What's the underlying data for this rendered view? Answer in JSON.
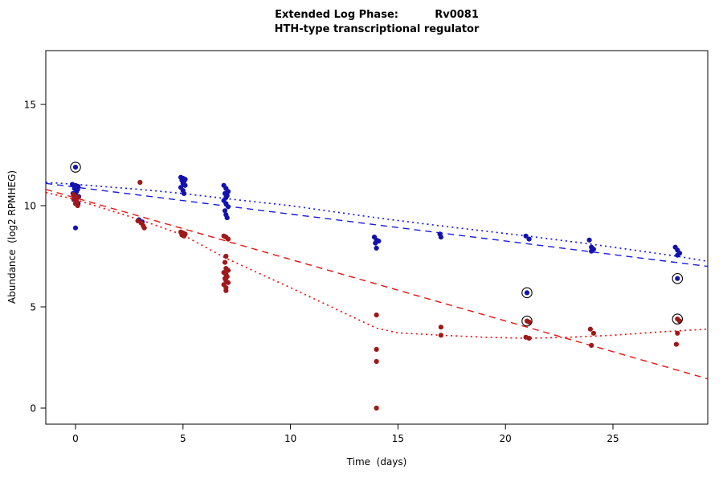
{
  "chart_data": {
    "type": "scatter",
    "title": "Extended Log Phase:          Rv0081",
    "subtitle": "HTH-type transcriptional regulator",
    "xlabel": "Time  (days)",
    "ylabel": "Abundance  (log2 RPMHEG)",
    "x_ticks": [
      0,
      5,
      10,
      15,
      20,
      25
    ],
    "y_ticks": [
      0,
      5,
      10,
      15
    ],
    "xlim": [
      -1.4,
      29.4
    ],
    "ylim": [
      -0.8,
      17.6
    ],
    "grid": false,
    "legend": "none",
    "colors": {
      "blue_points": "#1212b0",
      "red_points": "#a01818",
      "blue_line": "#1a1ae6",
      "red_line": "#ee1111",
      "outlier_ring": "#000000"
    },
    "series": [
      {
        "name": "blue",
        "color": "#1212b0",
        "points": [
          [
            0,
            11.9
          ],
          [
            -0.15,
            11.05
          ],
          [
            0.0,
            11.0
          ],
          [
            0.12,
            10.95
          ],
          [
            -0.05,
            10.85
          ],
          [
            0.1,
            10.8
          ],
          [
            0.05,
            10.7
          ],
          [
            -0.12,
            10.6
          ],
          [
            0.02,
            10.5
          ],
          [
            0.15,
            10.45
          ],
          [
            -0.08,
            10.3
          ],
          [
            0.05,
            10.2
          ],
          [
            0.12,
            10.1
          ],
          [
            0.0,
            8.9
          ],
          [
            2.95,
            9.3
          ],
          [
            3.1,
            9.2
          ],
          [
            4.9,
            11.4
          ],
          [
            5.0,
            11.35
          ],
          [
            5.1,
            11.3
          ],
          [
            4.95,
            11.25
          ],
          [
            5.05,
            11.2
          ],
          [
            5.0,
            11.1
          ],
          [
            5.1,
            11.0
          ],
          [
            4.9,
            10.9
          ],
          [
            5.0,
            10.75
          ],
          [
            5.05,
            10.6
          ],
          [
            6.9,
            11.0
          ],
          [
            7.0,
            10.85
          ],
          [
            7.1,
            10.7
          ],
          [
            6.95,
            10.6
          ],
          [
            7.05,
            10.5
          ],
          [
            7.0,
            10.4
          ],
          [
            6.9,
            10.25
          ],
          [
            7.0,
            10.1
          ],
          [
            7.1,
            9.95
          ],
          [
            6.95,
            9.75
          ],
          [
            7.0,
            9.55
          ],
          [
            7.05,
            9.4
          ],
          [
            13.9,
            8.45
          ],
          [
            14.0,
            8.3
          ],
          [
            14.1,
            8.25
          ],
          [
            13.95,
            8.15
          ],
          [
            14.0,
            7.9
          ],
          [
            16.95,
            8.6
          ],
          [
            17.0,
            8.45
          ],
          [
            20.95,
            8.5
          ],
          [
            21.1,
            8.35
          ],
          [
            21.0,
            5.7
          ],
          [
            23.9,
            8.3
          ],
          [
            24.0,
            7.95
          ],
          [
            24.1,
            7.85
          ],
          [
            24.0,
            7.75
          ],
          [
            27.9,
            7.95
          ],
          [
            28.0,
            7.8
          ],
          [
            28.1,
            7.65
          ],
          [
            28.0,
            7.55
          ],
          [
            28.0,
            6.4
          ]
        ]
      },
      {
        "name": "red",
        "color": "#a01818",
        "points": [
          [
            -0.1,
            10.55
          ],
          [
            0.0,
            10.45
          ],
          [
            0.1,
            10.4
          ],
          [
            -0.05,
            10.3
          ],
          [
            0.05,
            10.2
          ],
          [
            0.0,
            10.1
          ],
          [
            0.1,
            10.0
          ],
          [
            3.0,
            11.15
          ],
          [
            2.9,
            9.25
          ],
          [
            3.05,
            9.15
          ],
          [
            3.15,
            9.0
          ],
          [
            3.2,
            8.9
          ],
          [
            4.9,
            8.7
          ],
          [
            5.0,
            8.65
          ],
          [
            5.1,
            8.6
          ],
          [
            4.95,
            8.55
          ],
          [
            5.05,
            8.5
          ],
          [
            6.9,
            8.5
          ],
          [
            7.0,
            8.45
          ],
          [
            7.1,
            8.35
          ],
          [
            7.0,
            7.5
          ],
          [
            6.95,
            7.2
          ],
          [
            7.0,
            6.9
          ],
          [
            7.1,
            6.8
          ],
          [
            6.9,
            6.7
          ],
          [
            7.0,
            6.6
          ],
          [
            7.05,
            6.5
          ],
          [
            6.95,
            6.4
          ],
          [
            7.0,
            6.3
          ],
          [
            7.1,
            6.2
          ],
          [
            6.9,
            6.1
          ],
          [
            7.0,
            5.95
          ],
          [
            7.0,
            5.8
          ],
          [
            14.0,
            4.6
          ],
          [
            14.0,
            2.9
          ],
          [
            14.0,
            2.3
          ],
          [
            14.0,
            0.0
          ],
          [
            17.0,
            4.0
          ],
          [
            17.0,
            3.6
          ],
          [
            21.0,
            4.3
          ],
          [
            21.1,
            4.25
          ],
          [
            20.95,
            3.5
          ],
          [
            21.1,
            3.45
          ],
          [
            23.95,
            3.9
          ],
          [
            24.1,
            3.7
          ],
          [
            24.0,
            3.1
          ],
          [
            28.0,
            4.4
          ],
          [
            28.1,
            4.3
          ],
          [
            28.0,
            3.7
          ],
          [
            27.95,
            3.15
          ]
        ]
      }
    ],
    "lines": [
      {
        "name": "blue-dashed-linear-fit",
        "color": "#1a1ae6",
        "style": "dashed",
        "points": [
          [
            -1.38,
            11.1
          ],
          [
            29.4,
            7.0
          ]
        ]
      },
      {
        "name": "blue-dotted-smooth-fit",
        "color": "#1a1ae6",
        "style": "dotted",
        "points": [
          [
            -1.38,
            11.15
          ],
          [
            0,
            11.05
          ],
          [
            3,
            10.8
          ],
          [
            5,
            10.6
          ],
          [
            7,
            10.35
          ],
          [
            10,
            10.0
          ],
          [
            14,
            9.4
          ],
          [
            17,
            9.0
          ],
          [
            21,
            8.5
          ],
          [
            24,
            8.1
          ],
          [
            28,
            7.5
          ],
          [
            29.4,
            7.25
          ]
        ]
      },
      {
        "name": "red-dashed-linear-fit",
        "color": "#ee1111",
        "style": "dashed",
        "points": [
          [
            -1.38,
            10.8
          ],
          [
            29.4,
            1.45
          ]
        ]
      },
      {
        "name": "red-dotted-smooth-fit",
        "color": "#ee1111",
        "style": "dotted",
        "points": [
          [
            -1.38,
            10.65
          ],
          [
            0,
            10.3
          ],
          [
            3,
            9.3
          ],
          [
            5,
            8.55
          ],
          [
            7,
            7.4
          ],
          [
            10,
            5.95
          ],
          [
            12,
            4.95
          ],
          [
            14,
            3.95
          ],
          [
            15,
            3.72
          ],
          [
            17,
            3.6
          ],
          [
            19,
            3.5
          ],
          [
            21,
            3.45
          ],
          [
            23,
            3.5
          ],
          [
            25,
            3.6
          ],
          [
            27,
            3.75
          ],
          [
            29.4,
            3.9
          ]
        ]
      }
    ],
    "circled_points": [
      {
        "x": 0,
        "y": 11.9,
        "series": "blue"
      },
      {
        "x": 21,
        "y": 5.7,
        "series": "blue"
      },
      {
        "x": 28,
        "y": 6.4,
        "series": "blue"
      },
      {
        "x": 21,
        "y": 4.3,
        "series": "red"
      },
      {
        "x": 28,
        "y": 4.4,
        "series": "red"
      }
    ]
  }
}
